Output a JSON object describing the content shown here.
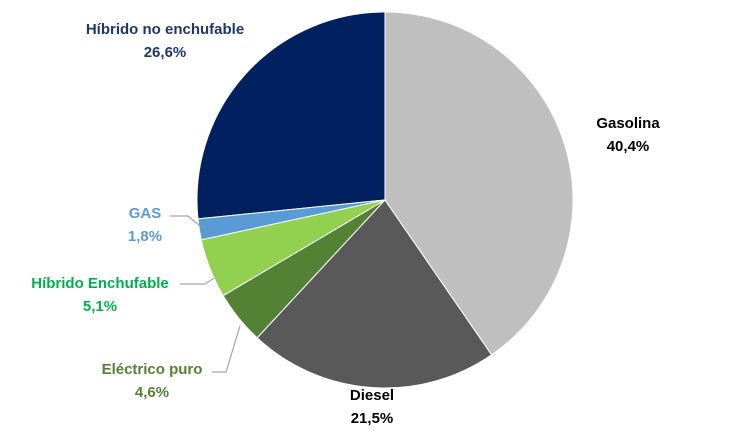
{
  "chart_data": {
    "type": "pie",
    "categories": [
      "Gasolina",
      "Diesel",
      "Eléctrico puro",
      "Híbrido Enchufable",
      "GAS",
      "Híbrido no enchufable"
    ],
    "values": [
      40.4,
      21.5,
      4.6,
      5.1,
      1.8,
      26.6
    ],
    "value_labels": [
      "40,4%",
      "21,5%",
      "4,6%",
      "5,1%",
      "1,8%",
      "26,6%"
    ],
    "colors": [
      "#bfbfbf",
      "#595959",
      "#548235",
      "#92d050",
      "#5b9bd5",
      "#002060"
    ]
  }
}
